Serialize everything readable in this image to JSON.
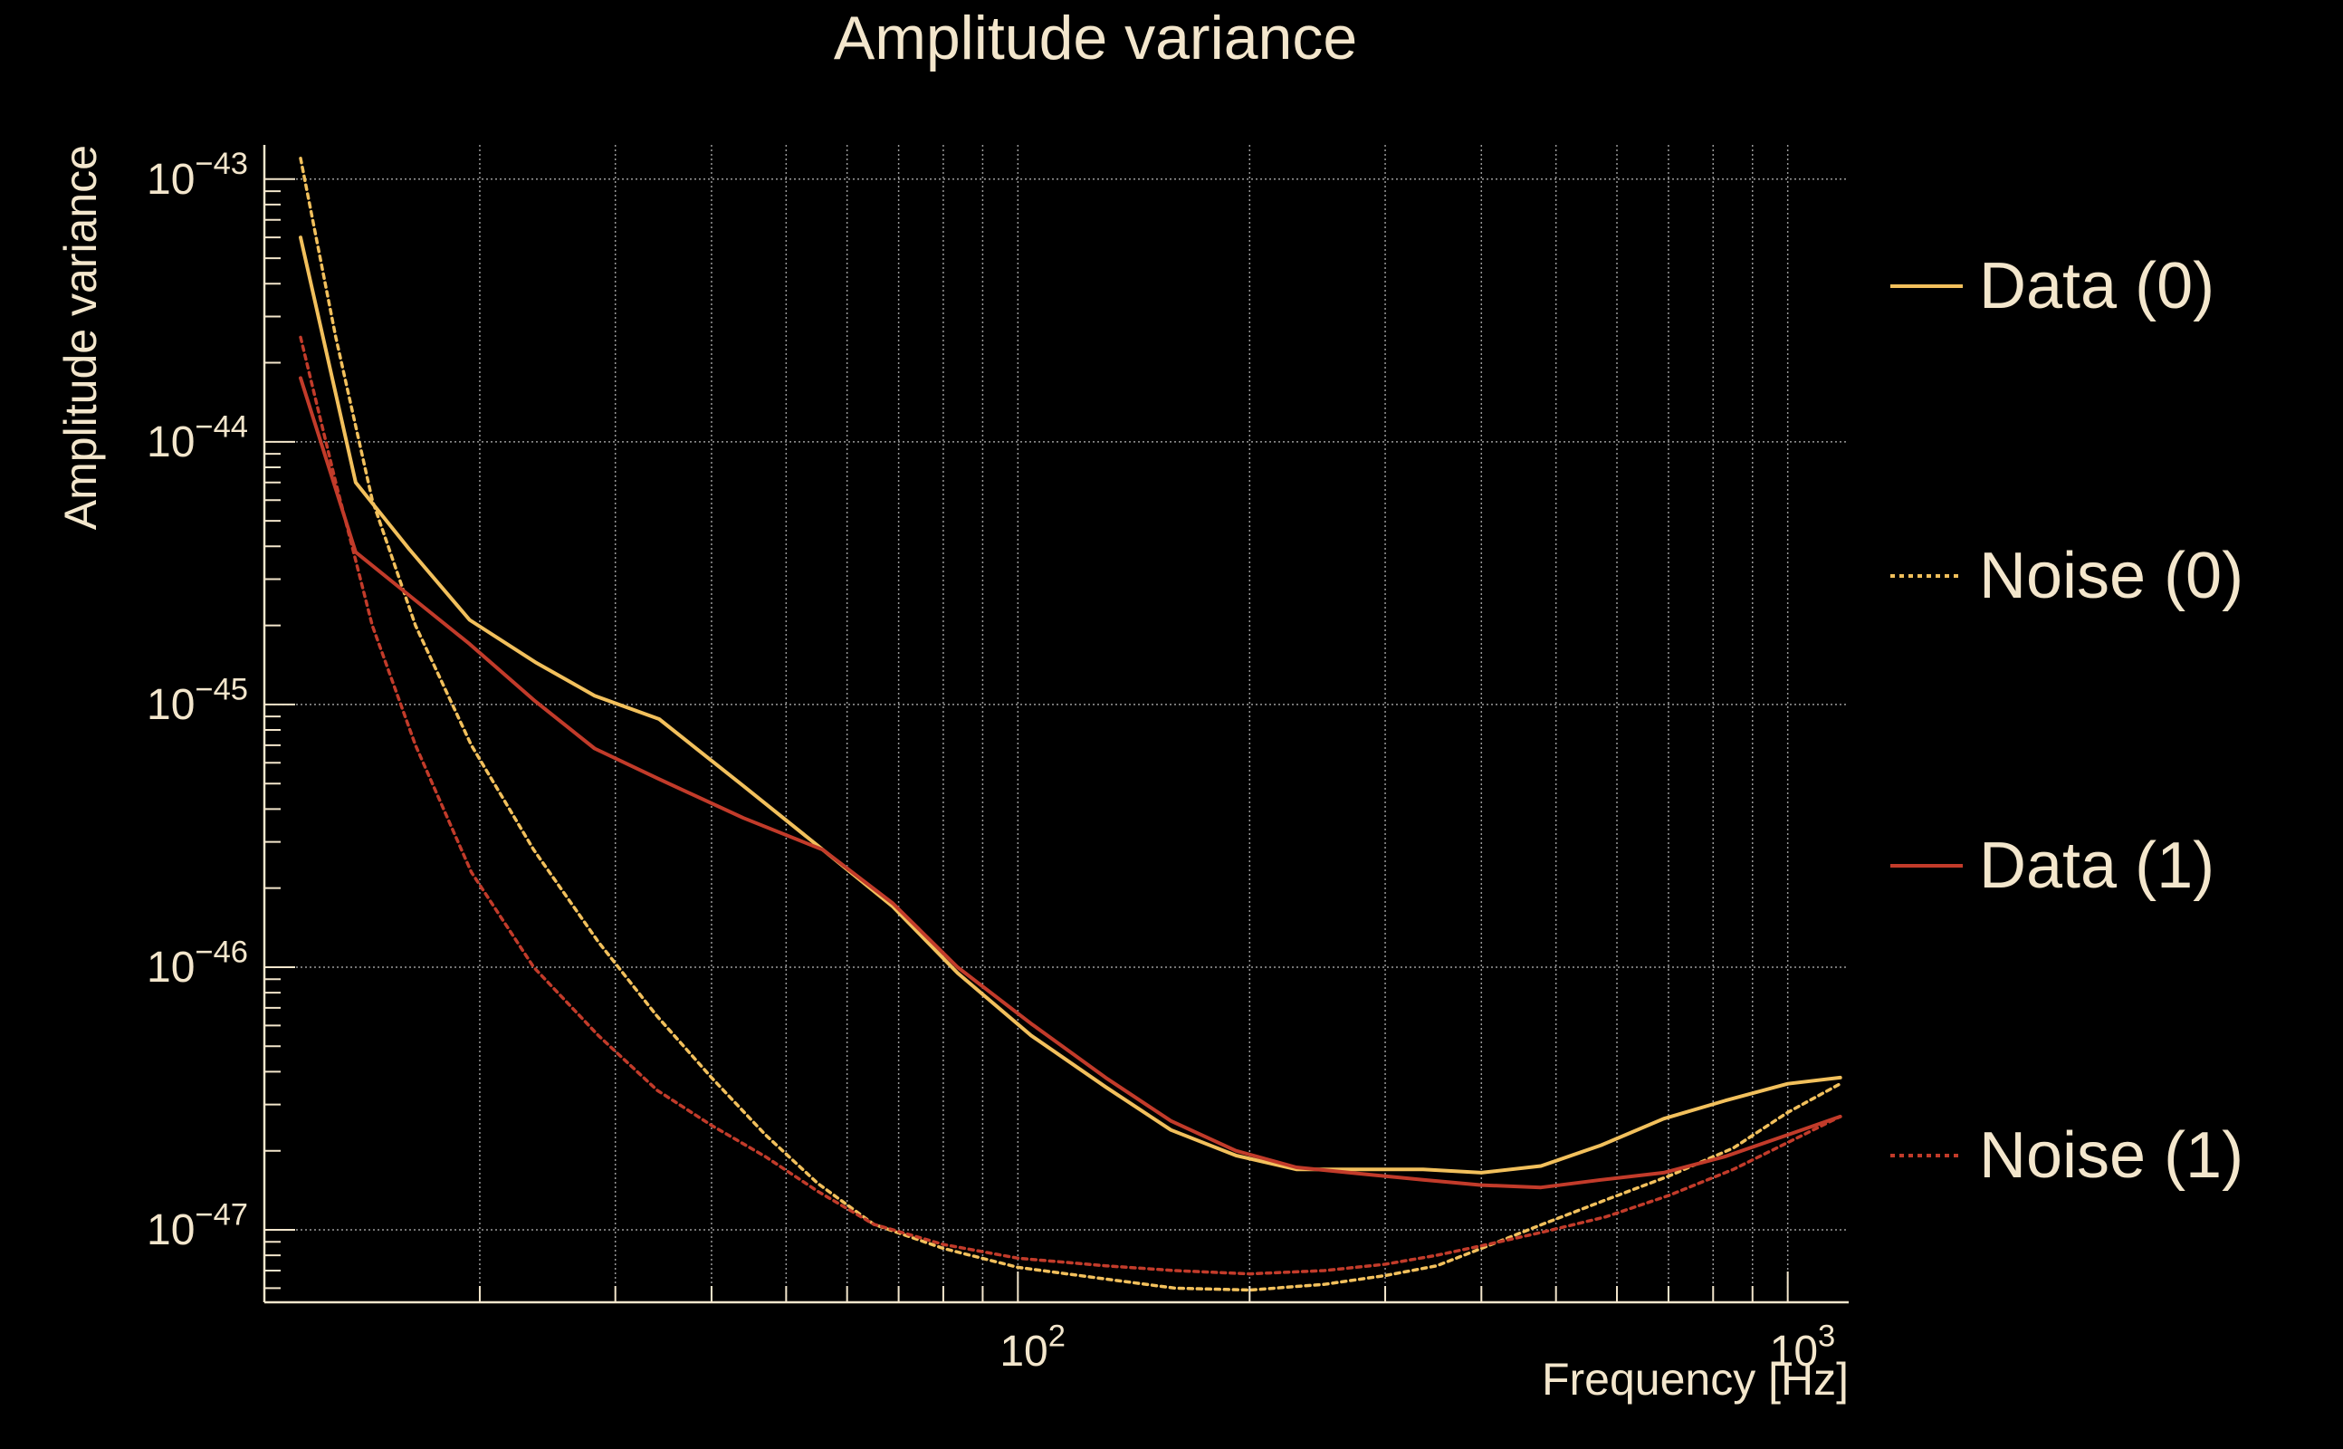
{
  "chart_data": {
    "type": "line",
    "title": "Amplitude variance",
    "xlabel": "Frequency [Hz]",
    "ylabel": "Amplitude variance",
    "x_scale": "log",
    "y_scale": "log",
    "xlim": [
      10.5,
      1200
    ],
    "ylim": [
      5.3e-48,
      1.35e-43
    ],
    "grid": true,
    "legend_position": "right",
    "x_ticks": [
      {
        "value": 100,
        "base": "10",
        "exp": "2"
      },
      {
        "value": 1000,
        "base": "10",
        "exp": "3"
      }
    ],
    "y_ticks": [
      {
        "value": 1e-43,
        "base": "10",
        "exp": "−43"
      },
      {
        "value": 1e-44,
        "base": "10",
        "exp": "−44"
      },
      {
        "value": 1e-45,
        "base": "10",
        "exp": "−45"
      },
      {
        "value": 1e-46,
        "base": "10",
        "exp": "−46"
      },
      {
        "value": 1e-47,
        "base": "10",
        "exp": "−47"
      }
    ],
    "series": [
      {
        "name": "Data (0)",
        "color": "#f2c05c",
        "dashed": false,
        "x": [
          11.7,
          13.8,
          16.2,
          19.4,
          23.6,
          28.2,
          34.2,
          44.0,
          55.8,
          68.8,
          83.5,
          104,
          130,
          158,
          192,
          230,
          282,
          336,
          400,
          478,
          572,
          690,
          828,
          1000,
          1170
        ],
        "y": [
          6e-44,
          7e-45,
          3.9e-45,
          2.1e-45,
          1.45e-45,
          1.08e-45,
          8.8e-46,
          4.9e-46,
          2.8e-46,
          1.7e-46,
          9.5e-47,
          5.5e-47,
          3.5e-47,
          2.4e-47,
          1.92e-47,
          1.7e-47,
          1.7e-47,
          1.7e-47,
          1.65e-47,
          1.75e-47,
          2.1e-47,
          2.65e-47,
          3.1e-47,
          3.6e-47,
          3.8e-47
        ]
      },
      {
        "name": "Noise (0)",
        "color": "#f2c05c",
        "dashed": true,
        "x": [
          11.7,
          13.0,
          14.5,
          16.5,
          19.5,
          23.5,
          28.5,
          34.0,
          40.0,
          47.0,
          55.0,
          65.0,
          80.0,
          100,
          130,
          160,
          200,
          250,
          300,
          350,
          400,
          480,
          580,
          700,
          850,
          1000,
          1170
        ],
        "y": [
          1.2e-43,
          2.5e-44,
          6e-45,
          2e-45,
          7e-46,
          2.8e-46,
          1.25e-46,
          6.5e-47,
          3.8e-47,
          2.3e-47,
          1.5e-47,
          1.05e-47,
          8.5e-48,
          7.2e-48,
          6.5e-48,
          6e-48,
          5.9e-48,
          6.2e-48,
          6.7e-48,
          7.3e-48,
          8.5e-48,
          1.05e-47,
          1.3e-47,
          1.6e-47,
          2.05e-47,
          2.8e-47,
          3.6e-47
        ]
      },
      {
        "name": "Data (1)",
        "color": "#c23b2a",
        "dashed": false,
        "x": [
          11.7,
          13.8,
          16.2,
          19.4,
          23.6,
          28.2,
          34.2,
          44.0,
          55.8,
          68.8,
          83.5,
          104,
          130,
          158,
          192,
          230,
          282,
          336,
          400,
          478,
          572,
          690,
          828,
          1000,
          1170
        ],
        "y": [
          1.75e-44,
          3.8e-45,
          2.6e-45,
          1.7e-45,
          1.03e-45,
          6.8e-46,
          5.2e-46,
          3.7e-46,
          2.8e-46,
          1.75e-46,
          1e-46,
          6.1e-47,
          3.8e-47,
          2.6e-47,
          2e-47,
          1.73e-47,
          1.63e-47,
          1.55e-47,
          1.48e-47,
          1.45e-47,
          1.55e-47,
          1.65e-47,
          1.9e-47,
          2.3e-47,
          2.7e-47
        ]
      },
      {
        "name": "Noise (1)",
        "color": "#c23b2a",
        "dashed": true,
        "x": [
          11.7,
          13.0,
          14.5,
          16.5,
          19.5,
          23.5,
          28.5,
          34.0,
          40.0,
          47.0,
          55.0,
          65.0,
          80.0,
          100,
          130,
          160,
          200,
          250,
          300,
          350,
          400,
          480,
          580,
          700,
          850,
          1000,
          1170
        ],
        "y": [
          2.5e-44,
          7e-45,
          2e-45,
          7e-46,
          2.3e-46,
          1e-46,
          5.5e-47,
          3.4e-47,
          2.5e-47,
          1.9e-47,
          1.4e-47,
          1.05e-47,
          8.8e-48,
          7.8e-48,
          7.3e-48,
          7e-48,
          6.8e-48,
          7e-48,
          7.4e-48,
          8e-48,
          8.7e-48,
          9.8e-48,
          1.12e-47,
          1.35e-47,
          1.7e-47,
          2.15e-47,
          2.7e-47
        ]
      }
    ]
  }
}
